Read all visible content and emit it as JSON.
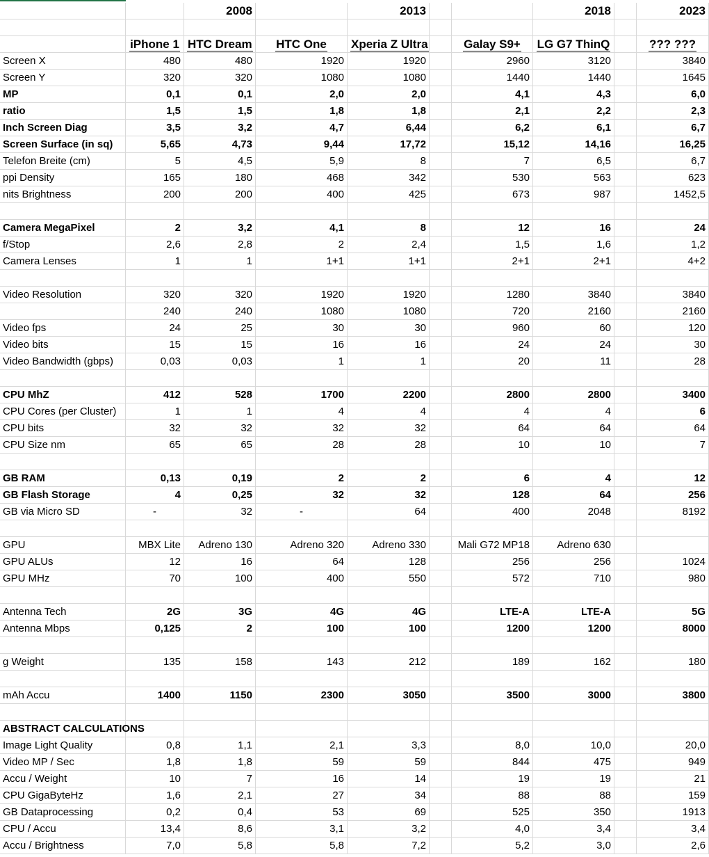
{
  "sheet": {
    "years": [
      "2008",
      "2013",
      "2018",
      "2023"
    ],
    "devices": [
      "iPhone 1",
      "HTC Dream",
      "HTC One",
      "Xperia Z Ultra",
      "Galay S9+",
      "LG G7 ThinQ",
      "",
      "??? ???"
    ],
    "sections": [
      [
        {
          "label": "Screen X",
          "bold": false,
          "values": [
            "480",
            "480",
            "1920",
            "1920",
            "2960",
            "3120",
            "",
            "3840"
          ]
        },
        {
          "label": "Screen Y",
          "bold": false,
          "values": [
            "320",
            "320",
            "1080",
            "1080",
            "1440",
            "1440",
            "",
            "1645"
          ]
        },
        {
          "label": "MP",
          "bold": true,
          "values": [
            "0,1",
            "0,1",
            "2,0",
            "2,0",
            "4,1",
            "4,3",
            "",
            "6,0"
          ]
        },
        {
          "label": "ratio",
          "bold": true,
          "values": [
            "1,5",
            "1,5",
            "1,8",
            "1,8",
            "2,1",
            "2,2",
            "",
            "2,3"
          ]
        },
        {
          "label": "Inch Screen Diag",
          "bold": true,
          "values": [
            "3,5",
            "3,2",
            "4,7",
            "6,44",
            "6,2",
            "6,1",
            "",
            "6,7"
          ]
        },
        {
          "label": "Screen Surface (in sq)",
          "bold": true,
          "values": [
            "5,65",
            "4,73",
            "9,44",
            "17,72",
            "15,12",
            "14,16",
            "",
            "16,25"
          ]
        },
        {
          "label": "Telefon Breite (cm)",
          "bold": false,
          "values": [
            "5",
            "4,5",
            "5,9",
            "8",
            "7",
            "6,5",
            "",
            "6,7"
          ]
        },
        {
          "label": "ppi Density",
          "bold": false,
          "values": [
            "165",
            "180",
            "468",
            "342",
            "530",
            "563",
            "",
            "623"
          ]
        },
        {
          "label": "nits Brightness",
          "bold": false,
          "values": [
            "200",
            "200",
            "400",
            "425",
            "673",
            "987",
            "",
            "1452,5"
          ]
        }
      ],
      [
        {
          "label": "Camera MegaPixel",
          "bold": true,
          "values": [
            "2",
            "3,2",
            "4,1",
            "8",
            "12",
            "16",
            "",
            "24"
          ]
        },
        {
          "label": "f/Stop",
          "bold": false,
          "values": [
            "2,6",
            "2,8",
            "2",
            "2,4",
            "1,5",
            "1,6",
            "",
            "1,2"
          ]
        },
        {
          "label": "Camera Lenses",
          "bold": false,
          "values": [
            "1",
            "1",
            "1+1",
            "1+1",
            "2+1",
            "2+1",
            "",
            "4+2"
          ]
        }
      ],
      [
        {
          "label": "Video Resolution",
          "bold": false,
          "values": [
            "320",
            "320",
            "1920",
            "1920",
            "1280",
            "3840",
            "",
            "3840"
          ]
        },
        {
          "label": "",
          "bold": false,
          "values": [
            "240",
            "240",
            "1080",
            "1080",
            "720",
            "2160",
            "",
            "2160"
          ]
        },
        {
          "label": "Video fps",
          "bold": false,
          "values": [
            "24",
            "25",
            "30",
            "30",
            "960",
            "60",
            "",
            "120"
          ]
        },
        {
          "label": "Video bits",
          "bold": false,
          "values": [
            "15",
            "15",
            "16",
            "16",
            "24",
            "24",
            "",
            "30"
          ]
        },
        {
          "label": "Video Bandwidth (gbps)",
          "bold": false,
          "values": [
            "0,03",
            "0,03",
            "1",
            "1",
            "20",
            "11",
            "",
            "28"
          ]
        }
      ],
      [
        {
          "label": "CPU MhZ",
          "bold": true,
          "values": [
            "412",
            "528",
            "1700",
            "2200",
            "2800",
            "2800",
            "",
            "3400"
          ]
        },
        {
          "label": "CPU Cores (per Cluster)",
          "bold": false,
          "values": [
            "1",
            "1",
            "4",
            "4",
            "4",
            "4",
            "",
            "6"
          ],
          "boldcols": [
            7
          ]
        },
        {
          "label": "CPU bits",
          "bold": false,
          "values": [
            "32",
            "32",
            "32",
            "32",
            "64",
            "64",
            "",
            "64"
          ]
        },
        {
          "label": "CPU Size nm",
          "bold": false,
          "values": [
            "65",
            "65",
            "28",
            "28",
            "10",
            "10",
            "",
            "7"
          ]
        }
      ],
      [
        {
          "label": "GB RAM",
          "bold": true,
          "values": [
            "0,13",
            "0,19",
            "2",
            "2",
            "6",
            "4",
            "",
            "12"
          ]
        },
        {
          "label": "GB Flash Storage",
          "bold": true,
          "values": [
            "4",
            "0,25",
            "32",
            "32",
            "128",
            "64",
            "",
            "256"
          ]
        },
        {
          "label": "GB via Micro SD",
          "bold": false,
          "values": [
            "-",
            "32",
            "-",
            "64",
            "400",
            "2048",
            "",
            "8192"
          ],
          "centercols": [
            0,
            2
          ]
        }
      ],
      [
        {
          "label": "GPU",
          "bold": false,
          "values": [
            "MBX Lite",
            "Adreno 130",
            "Adreno 320",
            "Adreno 330",
            "Mali G72 MP18",
            "Adreno 630",
            "",
            ""
          ]
        },
        {
          "label": "GPU ALUs",
          "bold": false,
          "values": [
            "12",
            "16",
            "64",
            "128",
            "256",
            "256",
            "",
            "1024"
          ]
        },
        {
          "label": "GPU MHz",
          "bold": false,
          "values": [
            "70",
            "100",
            "400",
            "550",
            "572",
            "710",
            "",
            "980"
          ]
        }
      ],
      [
        {
          "label": "Antenna Tech",
          "bold": false,
          "values": [
            "2G",
            "3G",
            "4G",
            "4G",
            "LTE-A",
            "LTE-A",
            "",
            "5G"
          ],
          "boldvals": true
        },
        {
          "label": "Antenna Mbps",
          "bold": false,
          "values": [
            "0,125",
            "2",
            "100",
            "100",
            "1200",
            "1200",
            "",
            "8000"
          ],
          "boldvals": true
        }
      ],
      [
        {
          "label": "g Weight",
          "bold": false,
          "values": [
            "135",
            "158",
            "143",
            "212",
            "189",
            "162",
            "",
            "180"
          ]
        }
      ],
      [
        {
          "label": "mAh Accu",
          "bold": false,
          "values": [
            "1400",
            "1150",
            "2300",
            "3050",
            "3500",
            "3000",
            "",
            "3800"
          ],
          "boldvals": true
        }
      ],
      [
        {
          "label": "ABSTRACT CALCULATIONS",
          "bold": true,
          "values": [
            "",
            "",
            "",
            "",
            "",
            "",
            "",
            ""
          ]
        },
        {
          "label": "Image Light Quality",
          "bold": false,
          "values": [
            "0,8",
            "1,1",
            "2,1",
            "3,3",
            "8,0",
            "10,0",
            "",
            "20,0"
          ]
        },
        {
          "label": "Video MP / Sec",
          "bold": false,
          "values": [
            "1,8",
            "1,8",
            "59",
            "59",
            "844",
            "475",
            "",
            "949"
          ]
        },
        {
          "label": "Accu / Weight",
          "bold": false,
          "values": [
            "10",
            "7",
            "16",
            "14",
            "19",
            "19",
            "",
            "21"
          ]
        },
        {
          "label": "CPU GigaByteHz",
          "bold": false,
          "values": [
            "1,6",
            "2,1",
            "27",
            "34",
            "88",
            "88",
            "",
            "159"
          ]
        },
        {
          "label": "GB Dataprocessing",
          "bold": false,
          "values": [
            "0,2",
            "0,4",
            "53",
            "69",
            "525",
            "350",
            "",
            "1913"
          ]
        },
        {
          "label": "CPU / Accu",
          "bold": false,
          "values": [
            "13,4",
            "8,6",
            "3,1",
            "3,2",
            "4,0",
            "3,4",
            "",
            "3,4"
          ]
        },
        {
          "label": "Accu / Brightness",
          "bold": false,
          "values": [
            "7,0",
            "5,8",
            "5,8",
            "7,2",
            "5,2",
            "3,0",
            "",
            "2,6"
          ]
        }
      ]
    ]
  }
}
